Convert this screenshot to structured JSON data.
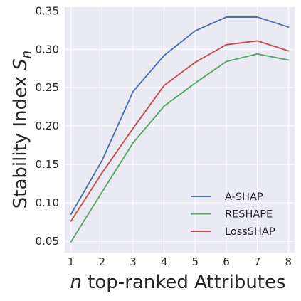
{
  "chart_data": {
    "type": "line",
    "x": [
      1,
      2,
      3,
      4,
      5,
      6,
      7,
      8
    ],
    "series": [
      {
        "name": "A-SHAP",
        "color": "#4c72b0",
        "values": [
          0.085,
          0.155,
          0.245,
          0.292,
          0.324,
          0.342,
          0.342,
          0.329
        ]
      },
      {
        "name": "RESHAPE",
        "color": "#55a868",
        "values": [
          0.049,
          0.114,
          0.178,
          0.226,
          0.256,
          0.284,
          0.294,
          0.286
        ]
      },
      {
        "name": "LossSHAP",
        "color": "#c44e52",
        "values": [
          0.076,
          0.139,
          0.197,
          0.253,
          0.283,
          0.306,
          0.311,
          0.298
        ]
      }
    ],
    "xticks": [
      "1",
      "2",
      "3",
      "4",
      "5",
      "6",
      "7",
      "8"
    ],
    "yticks": [
      "0.05",
      "0.10",
      "0.15",
      "0.20",
      "0.25",
      "0.30",
      "0.35"
    ],
    "xlabel_var": "n",
    "xlabel_text": " top-ranked Attributes",
    "ylabel_text": "Stability Index ",
    "ylabel_var": "S",
    "ylabel_sub": "n",
    "xlim": [
      0.8,
      8.2
    ],
    "ylim": [
      0.035,
      0.355
    ],
    "grid": true,
    "background": "#eaeaf2",
    "legend_position": "lower right"
  }
}
